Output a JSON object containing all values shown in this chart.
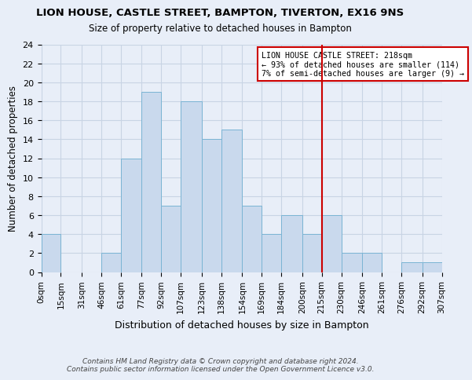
{
  "title": "LION HOUSE, CASTLE STREET, BAMPTON, TIVERTON, EX16 9NS",
  "subtitle": "Size of property relative to detached houses in Bampton",
  "xlabel": "Distribution of detached houses by size in Bampton",
  "ylabel": "Number of detached properties",
  "bar_color": "#c9d9ed",
  "bar_edge_color": "#7ab4d4",
  "bin_edges": [
    0,
    15,
    31,
    46,
    61,
    77,
    92,
    107,
    123,
    138,
    154,
    169,
    184,
    200,
    215,
    230,
    246,
    261,
    276,
    292,
    307
  ],
  "bin_labels": [
    "0sqm",
    "15sqm",
    "31sqm",
    "46sqm",
    "61sqm",
    "77sqm",
    "92sqm",
    "107sqm",
    "123sqm",
    "138sqm",
    "154sqm",
    "169sqm",
    "184sqm",
    "200sqm",
    "215sqm",
    "230sqm",
    "246sqm",
    "261sqm",
    "276sqm",
    "292sqm",
    "307sqm"
  ],
  "counts": [
    4,
    0,
    0,
    2,
    12,
    19,
    7,
    18,
    14,
    15,
    7,
    4,
    6,
    4,
    6,
    2,
    2,
    0,
    1,
    1
  ],
  "vline_x": 215,
  "vline_color": "#cc0000",
  "annotation_text": "LION HOUSE CASTLE STREET: 218sqm\n← 93% of detached houses are smaller (114)\n7% of semi-detached houses are larger (9) →",
  "annotation_box_color": "#ffffff",
  "annotation_box_edge": "#cc0000",
  "grid_color": "#c8d4e4",
  "background_color": "#e8eef8",
  "footer_line1": "Contains HM Land Registry data © Crown copyright and database right 2024.",
  "footer_line2": "Contains public sector information licensed under the Open Government Licence v3.0.",
  "ylim": [
    0,
    24
  ],
  "yticks": [
    0,
    2,
    4,
    6,
    8,
    10,
    12,
    14,
    16,
    18,
    20,
    22,
    24
  ]
}
